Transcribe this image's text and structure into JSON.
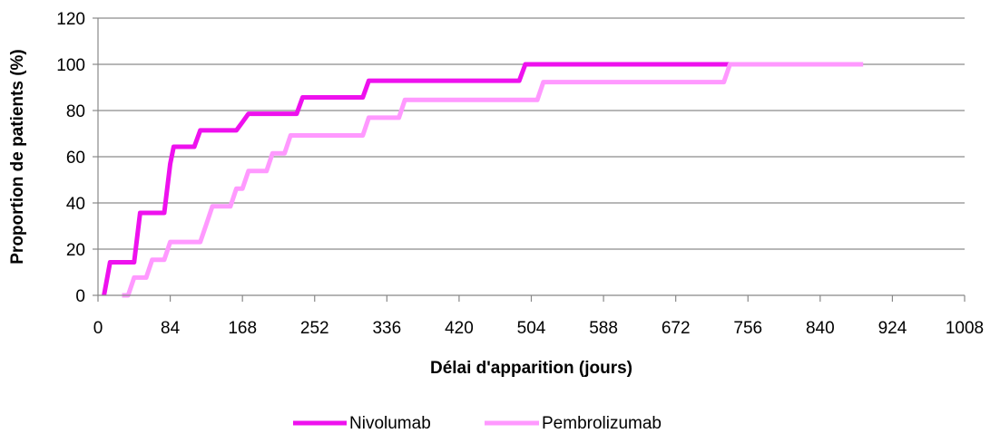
{
  "chart_data": {
    "type": "line",
    "title": "",
    "xlabel": "Délai d'apparition  (jours)",
    "ylabel": "Proportion  de patients (%)",
    "xlim": [
      0,
      1008
    ],
    "ylim": [
      0,
      120
    ],
    "x_ticks": [
      0,
      84,
      168,
      252,
      336,
      420,
      504,
      588,
      672,
      756,
      840,
      924,
      1008
    ],
    "y_ticks": [
      0,
      20,
      40,
      60,
      80,
      100,
      120
    ],
    "grid": "horizontal",
    "legend_position": "bottom",
    "step": true,
    "series": [
      {
        "name": "Nivolumab",
        "color": "#ee11ee",
        "x": [
          7,
          14,
          42,
          49,
          77,
          84,
          88,
          112,
          119,
          161,
          168,
          175,
          231,
          238,
          245,
          308,
          315,
          322,
          490,
          497,
          740
        ],
        "y": [
          0,
          14.3,
          14.3,
          35.7,
          35.7,
          57,
          64.3,
          64.3,
          71.4,
          71.4,
          75,
          78.6,
          78.6,
          85.7,
          85.7,
          85.7,
          92.9,
          92.9,
          92.9,
          100,
          100
        ]
      },
      {
        "name": "Pembrolizumab",
        "color": "#ff99ff",
        "x": [
          28,
          35,
          42,
          49,
          56,
          63,
          70,
          77,
          84,
          91,
          119,
          126,
          133,
          154,
          161,
          168,
          175,
          196,
          203,
          217,
          224,
          238,
          308,
          315,
          350,
          357,
          364,
          511,
          518,
          525,
          728,
          735,
          890
        ],
        "y": [
          0,
          0,
          7.7,
          7.7,
          7.7,
          15.4,
          15.4,
          15.4,
          23.1,
          23.1,
          23.1,
          30.8,
          38.5,
          38.5,
          46.2,
          46.2,
          53.8,
          53.8,
          61.5,
          61.5,
          69.2,
          69.2,
          69.2,
          76.9,
          76.9,
          84.6,
          84.6,
          84.6,
          92.3,
          92.3,
          92.3,
          100,
          100
        ]
      }
    ]
  }
}
